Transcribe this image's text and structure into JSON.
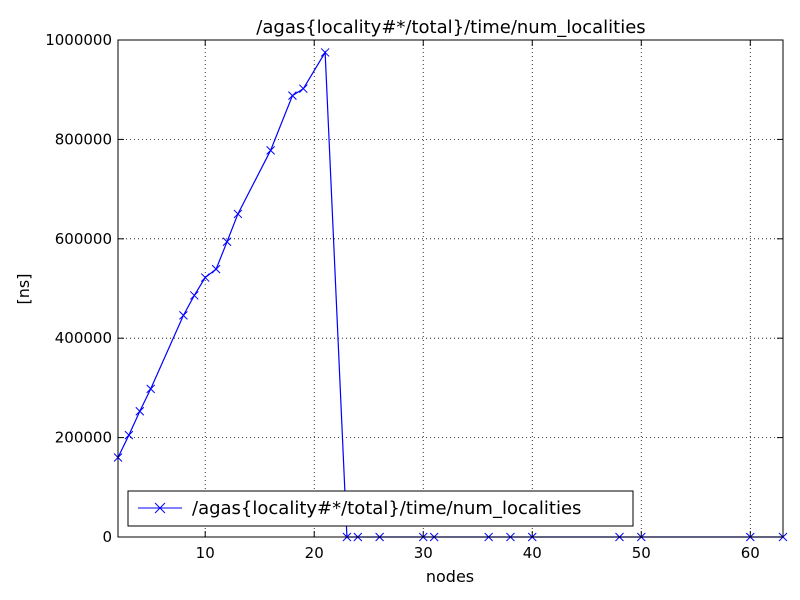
{
  "chart_data": {
    "type": "line",
    "title": "/agas{locality#*/total}/time/num_localities",
    "xlabel": "nodes",
    "ylabel": "[ns]",
    "xlim": [
      2,
      63
    ],
    "ylim": [
      0,
      1000000
    ],
    "xticks": [
      10,
      20,
      30,
      40,
      50,
      60
    ],
    "yticks": [
      0,
      200000,
      400000,
      600000,
      800000,
      1000000
    ],
    "xtick_labels": [
      "10",
      "20",
      "30",
      "40",
      "50",
      "60"
    ],
    "ytick_labels": [
      "0",
      "200000",
      "400000",
      "600000",
      "800000",
      "1000000"
    ],
    "grid": true,
    "legend_position": "bottom-left",
    "series": [
      {
        "name": "/agas{locality#*/total}/time/num_localities",
        "color": "#0000ff",
        "marker": "x",
        "x": [
          2,
          3,
          4,
          5,
          8,
          9,
          10,
          11,
          12,
          13,
          16,
          18,
          19,
          21,
          23,
          24,
          26,
          30,
          31,
          36,
          38,
          40,
          48,
          50,
          60,
          63
        ],
        "y": [
          160000,
          205000,
          253000,
          298000,
          446000,
          486000,
          522000,
          539000,
          594000,
          650000,
          778000,
          888000,
          902000,
          975000,
          0,
          0,
          0,
          0,
          0,
          0,
          0,
          0,
          0,
          0,
          0,
          0
        ]
      }
    ]
  }
}
